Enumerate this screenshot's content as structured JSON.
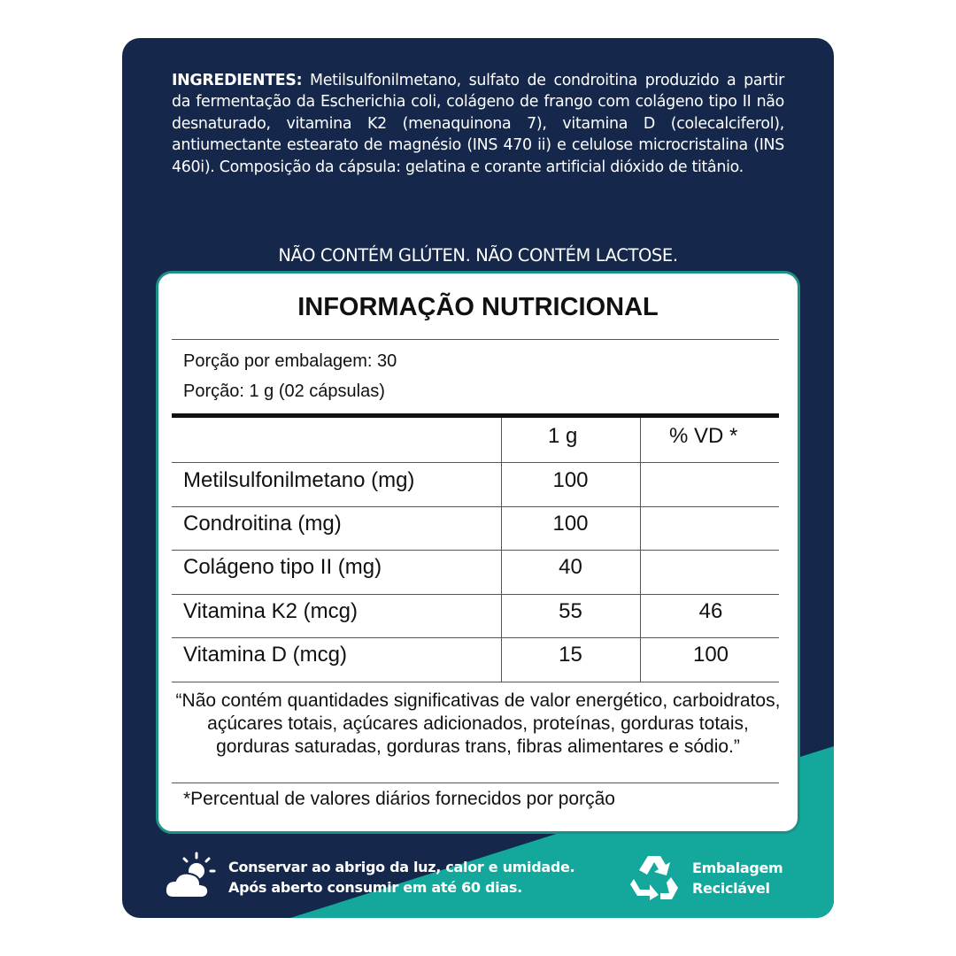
{
  "colors": {
    "navy": "#15274a",
    "teal": "#14a89c",
    "card_border": "#1d8f86"
  },
  "ingredients": {
    "label": "INGREDIENTES:",
    "text": " Metilsulfonilmetano, sulfato de condroitina produzido a partir da fermentação da Escherichia coli, colágeno de frango com colágeno tipo II não desnaturado, vitamina K2 (menaquinona 7), vitamina D (colecalciferol), antiumectante estearato de magnésio (INS 470 ii) e celulose microcristalina (INS 460i). Composição da cápsula: gelatina e corante artificial dióxido de titânio."
  },
  "allergens": "NÃO CONTÉM GLÚTEN. NÃO CONTÉM LACTOSE.",
  "nutrition": {
    "title": "INFORMAÇÃO NUTRICIONAL",
    "servings_per_package": "Porção por embalagem: 30",
    "serving_size": "Porção: 1 g (02 cápsulas)",
    "headers": [
      "",
      "1 g",
      "% VD *"
    ],
    "rows": [
      [
        "Metilsulfonilmetano (mg)",
        "100",
        ""
      ],
      [
        "Condroitina (mg)",
        "100",
        ""
      ],
      [
        "Colágeno tipo II (mg)",
        "40",
        ""
      ],
      [
        "Vitamina K2 (mcg)",
        "55",
        "46"
      ],
      [
        "Vitamina D (mcg)",
        "15",
        "100"
      ]
    ],
    "note": "“Não contém quantidades significativas de valor energético, carboidratos, açúcares totais, açúcares adicionados, proteínas, gorduras totais, gorduras saturadas, gorduras trans, fibras alimentares e sódio.”",
    "footnote": "*Percentual de valores diários fornecidos por porção"
  },
  "footer": {
    "storage_icon": "sun-cloud-icon",
    "storage_line1": "Conservar ao abrigo da luz, calor e umidade.",
    "storage_line2": "Após aberto consumir em até 60 dias.",
    "recycle_icon": "recycle-icon",
    "recycle_line1": "Embalagem",
    "recycle_line2": "Reciclável"
  }
}
